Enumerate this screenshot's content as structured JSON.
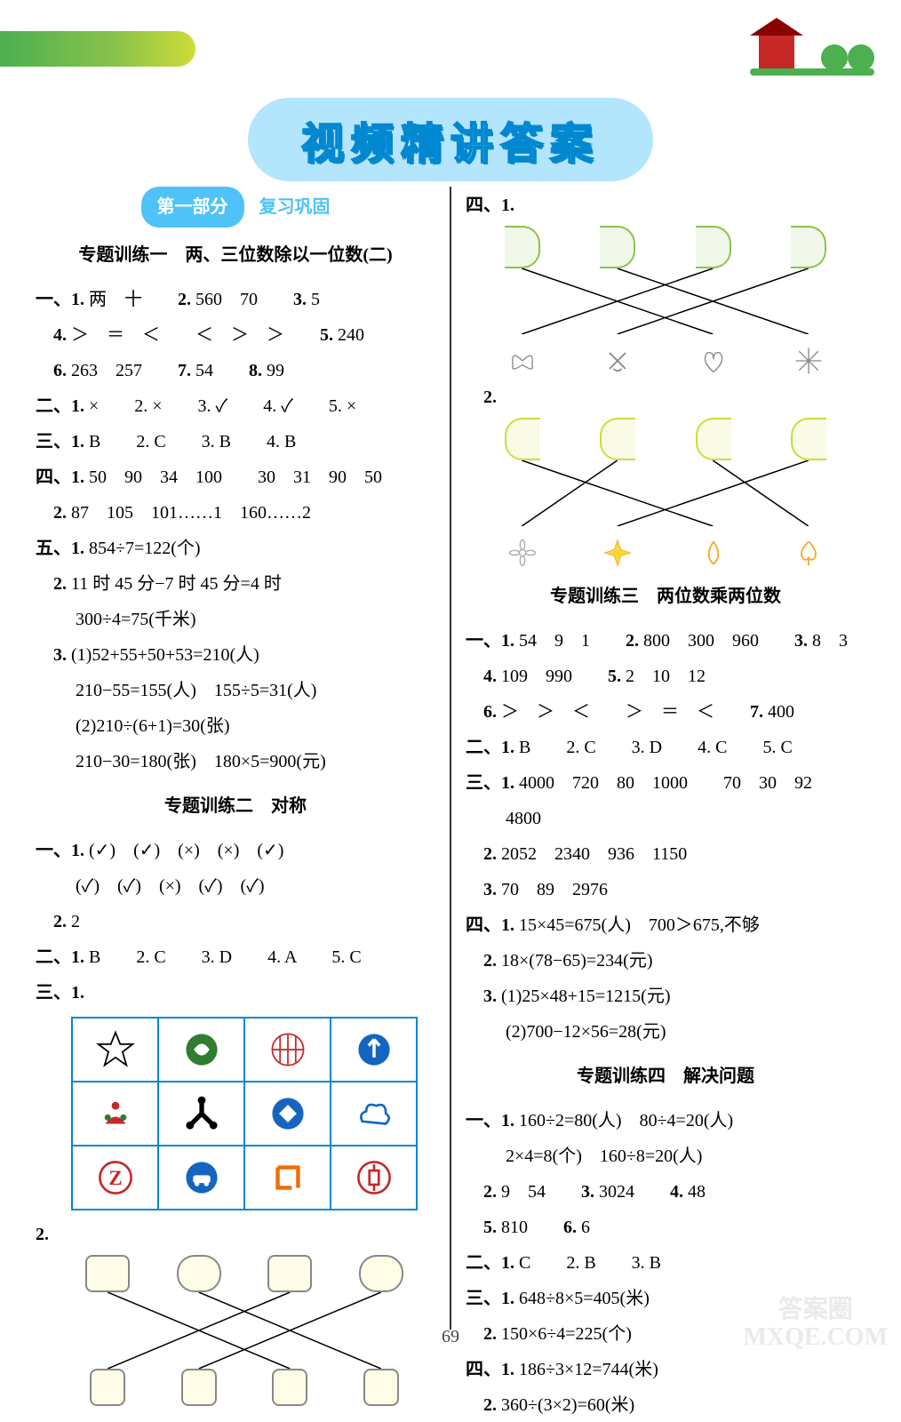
{
  "title": "视频精讲答案",
  "part1": {
    "pill": "第一部分",
    "desc": "复习巩固"
  },
  "page_number": "69",
  "watermark": "答案圈\nMXQE.COM",
  "left": {
    "topic1_title": "专题训练一　两、三位数除以一位数(二)",
    "t1_1a": "一、1.",
    "t1_1a_v": "两　十",
    "t1_1_2": "2.",
    "t1_1_2v": "560　70",
    "t1_1_3": "3.",
    "t1_1_3v": "5",
    "t1_4": "4.",
    "t1_4v": "＞　＝　＜　　＜　＞　＞",
    "t1_5": "5.",
    "t1_5v": "240",
    "t1_6": "6.",
    "t1_6v": "263　257",
    "t1_7": "7.",
    "t1_7v": "54",
    "t1_8": "8.",
    "t1_8v": "99",
    "t1_two": "二、1.",
    "t1_two_v": "×　　2. ×　　3. ✓　　4. ✓　　5. ×",
    "t1_three": "三、1.",
    "t1_three_v": "B　　2. C　　3. B　　4. B",
    "t1_four": "四、1.",
    "t1_four_v": "50　90　34　100　　30　31　90　50",
    "t1_four2": "2.",
    "t1_four2v": "87　105　101……1　160……2",
    "t1_five1": "五、1.",
    "t1_five1v": "854÷7=122(个)",
    "t1_five2": "2.",
    "t1_five2v": "11 时 45 分−7 时 45 分=4 时",
    "t1_five2b": "300÷4=75(千米)",
    "t1_five3": "3.",
    "t1_five3v": "(1)52+55+50+53=210(人)",
    "t1_five3b": "210−55=155(人)　155÷5=31(人)",
    "t1_five3c": "(2)210÷(6+1)=30(张)",
    "t1_five3d": "210−30=180(张)　180×5=900(元)",
    "topic2_title": "专题训练二　对称",
    "t2_1": "一、1.",
    "t2_1v": "(✓)　(✓)　(×)　(×)　(✓)",
    "t2_1b": "(✓)　(✓)　(×)　(✓)　(✓)",
    "t2_2": "2.",
    "t2_2v": "2",
    "t2_two": "二、1.",
    "t2_two_v": "B　　2. C　　3. D　　4. A　　5. C",
    "t2_three": "三、1.",
    "t2_match_label": "2."
  },
  "right": {
    "t4_1": "四、1.",
    "t4_2": "2.",
    "topic3_title": "专题训练三　两位数乘两位数",
    "r3_1": "一、1.",
    "r3_1v": "54　9　1",
    "r3_1_2": "2.",
    "r3_1_2v": "800　300　960",
    "r3_1_3": "3.",
    "r3_1_3v": "8　3",
    "r3_4": "4.",
    "r3_4v": "109　990",
    "r3_5": "5.",
    "r3_5v": "2　10　12",
    "r3_6": "6.",
    "r3_6v": "＞　＞　＜　　＞　＝　＜",
    "r3_7": "7.",
    "r3_7v": "400",
    "r3_two": "二、1.",
    "r3_two_v": "B　　2. C　　3. D　　4. C　　5. C",
    "r3_three": "三、1.",
    "r3_three_v": "4000　720　80　1000　　70　30　92",
    "r3_three_b": "4800",
    "r3_three2": "2.",
    "r3_three2v": "2052　2340　936　1150",
    "r3_three3": "3.",
    "r3_three3v": "70　89　2976",
    "r3_four1": "四、1.",
    "r3_four1v": "15×45=675(人)　700＞675,不够",
    "r3_four2": "2.",
    "r3_four2v": "18×(78−65)=234(元)",
    "r3_four3": "3.",
    "r3_four3v": "(1)25×48+15=1215(元)",
    "r3_four3b": "(2)700−12×56=28(元)",
    "topic4_title": "专题训练四　解决问题",
    "r4_1": "一、1.",
    "r4_1v": "160÷2=80(人)　80÷4=20(人)",
    "r4_1b": "2×4=8(个)　160÷8=20(人)",
    "r4_2": "2.",
    "r4_2v": "9　54",
    "r4_3": "3.",
    "r4_3v": "3024",
    "r4_4": "4.",
    "r4_4v": "48",
    "r4_5": "5.",
    "r4_5v": "810",
    "r4_6": "6.",
    "r4_6v": "6",
    "r4_two": "二、1.",
    "r4_two_v": "C　　2. B　　3. B",
    "r4_three1": "三、1.",
    "r4_three1v": "648÷8×5=405(米)",
    "r4_three2": "2.",
    "r4_three2v": "150×6÷4=225(个)",
    "r4_four1": "四、1.",
    "r4_four1v": "186÷3×12=744(米)",
    "r4_four2": "2.",
    "r4_four2v": "360÷(3×2)=60(米)"
  },
  "icon_grid": {
    "colors": {
      "blue": "#1565c0",
      "red": "#c62828",
      "green": "#2e7d32",
      "black": "#000000",
      "orange": "#ef6c00"
    }
  }
}
